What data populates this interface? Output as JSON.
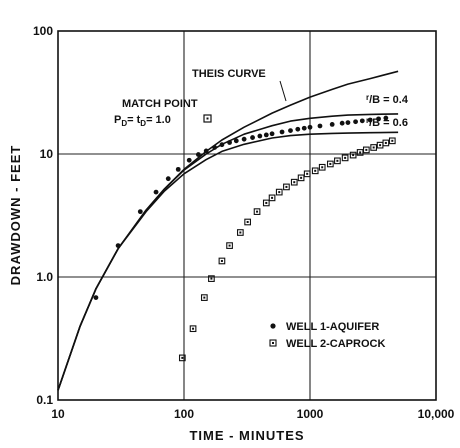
{
  "chart_data": {
    "type": "scatter",
    "xscale": "log",
    "yscale": "log",
    "xlim": [
      10,
      10000
    ],
    "ylim": [
      0.1,
      100
    ],
    "xlabel": "TIME - MINUTES",
    "ylabel": "DRAWDOWN - FEET",
    "x_ticks": [
      {
        "value": 10,
        "label": "10"
      },
      {
        "value": 100,
        "label": "100"
      },
      {
        "value": 1000,
        "label": "1000"
      },
      {
        "value": 10000,
        "label": "10,000"
      }
    ],
    "y_ticks": [
      {
        "value": 0.1,
        "label": "0.1"
      },
      {
        "value": 1,
        "label": "1.0"
      },
      {
        "value": 10,
        "label": "10"
      },
      {
        "value": 100,
        "label": "100"
      }
    ],
    "grid": true,
    "legend_position": "bottom-right",
    "annotations": {
      "theis": "THEIS CURVE",
      "match_point": "MATCH POINT",
      "match_eq": "P",
      "match_eq_sub1": "D",
      "match_eq_mid": "= t",
      "match_eq_sub2": "D",
      "match_eq_end": "= 1.0",
      "rb1_r": "r",
      "rb1_b": "/B = 0.4",
      "rb2_r": "r",
      "rb2_b": "/B = 0.6"
    },
    "curves": [
      {
        "id": "theis",
        "x": [
          10,
          15,
          20,
          30,
          50,
          70,
          100,
          150,
          200,
          300,
          500,
          700,
          1000,
          1500,
          2000,
          3000,
          5000
        ],
        "y": [
          0.12,
          0.4,
          0.8,
          1.7,
          3.5,
          5.2,
          7.5,
          10.5,
          13,
          16.5,
          21.5,
          25,
          29,
          33.5,
          37,
          41,
          47
        ]
      },
      {
        "id": "rb04",
        "x": [
          10,
          15,
          20,
          30,
          50,
          70,
          100,
          150,
          200,
          300,
          500,
          700,
          1000,
          1500,
          2000,
          3000,
          5000
        ],
        "y": [
          0.12,
          0.4,
          0.8,
          1.7,
          3.5,
          5.2,
          7.4,
          10,
          12,
          14.5,
          17,
          18.5,
          19.5,
          20.3,
          20.7,
          21,
          21.2
        ]
      },
      {
        "id": "rb06",
        "x": [
          10,
          15,
          20,
          30,
          50,
          70,
          100,
          150,
          200,
          300,
          500,
          700,
          1000,
          1500,
          2000,
          3000,
          5000
        ],
        "y": [
          0.12,
          0.4,
          0.8,
          1.7,
          3.4,
          5,
          6.9,
          9,
          10.5,
          12,
          13.5,
          14.1,
          14.5,
          14.7,
          14.8,
          14.9,
          15
        ]
      }
    ],
    "series": [
      {
        "name": "WELL 1-AQUIFER",
        "marker": "dot",
        "x": [
          20,
          30,
          45,
          60,
          75,
          90,
          110,
          130,
          150,
          175,
          200,
          230,
          260,
          300,
          350,
          400,
          450,
          500,
          600,
          700,
          800,
          900,
          1000,
          1200,
          1500,
          1800,
          2000,
          2300,
          2600,
          3000,
          3500,
          4000
        ],
        "y": [
          0.68,
          1.8,
          3.4,
          4.9,
          6.3,
          7.5,
          8.9,
          9.9,
          10.6,
          11.3,
          11.9,
          12.4,
          12.8,
          13.2,
          13.6,
          14,
          14.3,
          14.6,
          15.1,
          15.5,
          15.9,
          16.2,
          16.5,
          16.9,
          17.4,
          17.8,
          18,
          18.3,
          18.6,
          18.9,
          19.3,
          19.6
        ]
      },
      {
        "name": "WELL 2-CAPROCK",
        "marker": "square",
        "x": [
          97,
          118,
          145,
          165,
          200,
          230,
          280,
          320,
          380,
          450,
          500,
          570,
          650,
          750,
          850,
          950,
          1100,
          1250,
          1450,
          1650,
          1900,
          2200,
          2500,
          2800,
          3200,
          3600,
          4000,
          4500
        ],
        "y": [
          0.22,
          0.38,
          0.68,
          0.97,
          1.35,
          1.8,
          2.3,
          2.8,
          3.4,
          4,
          4.4,
          4.9,
          5.4,
          5.9,
          6.4,
          6.9,
          7.3,
          7.8,
          8.3,
          8.8,
          9.3,
          9.8,
          10.3,
          10.8,
          11.3,
          11.8,
          12.3,
          12.8
        ]
      }
    ]
  }
}
